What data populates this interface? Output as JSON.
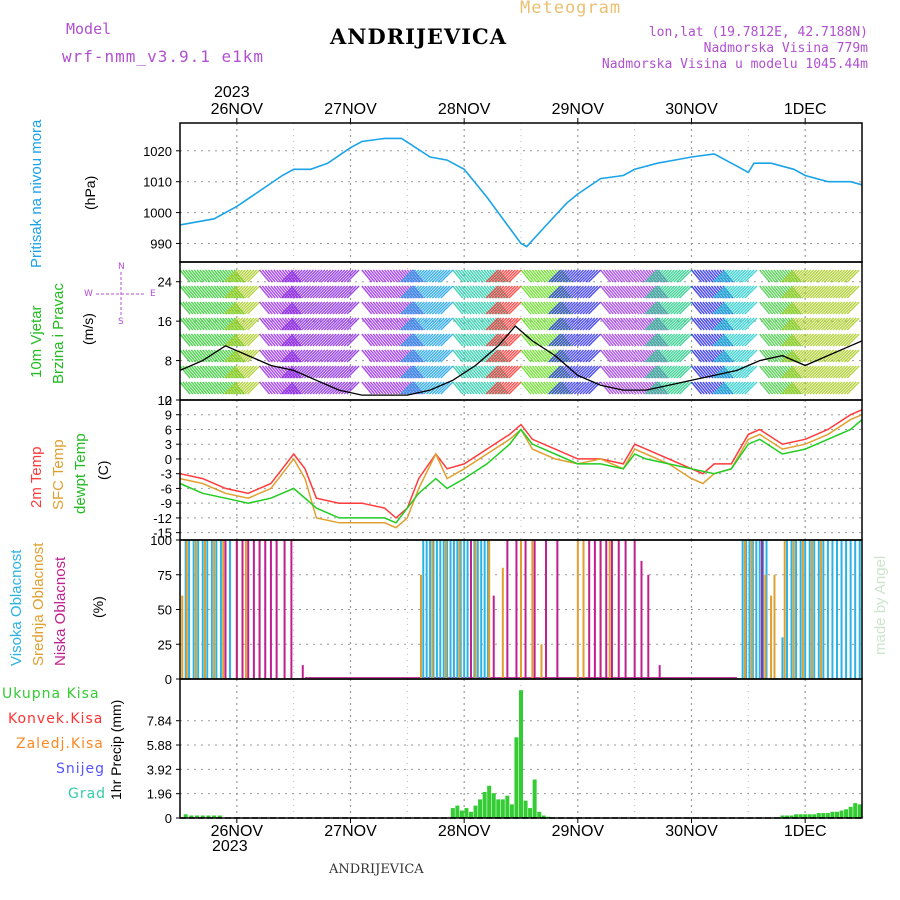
{
  "header": {
    "model_label": "Model",
    "model_value": "wrf-nmm_v3.9.1 e1km",
    "station": "ANDRIJEVICA",
    "meteogram": "Meteogram",
    "lonlat": "lon,lat (19.7812E, 42.7188N)",
    "elevation": "Nadmorska Visina 779m",
    "model_elevation": "Nadmorska Visina u modelu 1045.44m",
    "year_top": "2023",
    "year_bottom": "2023",
    "footer_station": "ANDRIJEVICA",
    "watermark": "made by Angel"
  },
  "colors": {
    "pressure": "#1aa3e8",
    "wind_speed": "#000000",
    "temp_2m": "#ff3b3b",
    "temp_sfc": "#e0a030",
    "dewpt": "#22cc22",
    "cloud_high": "#2bb3e6",
    "cloud_mid": "#e0a030",
    "cloud_low": "#c0208f",
    "precip_total": "#33cc33",
    "precip_conv": "#ff3333",
    "precip_frz": "#ff8822",
    "precip_snow": "#5555ff",
    "precip_grad": "#33ccaa",
    "axis_label_purple": "#b050d0",
    "meteogram_gold": "#e8c070"
  },
  "panel_labels": {
    "pressure": [
      "Pritisak na nivou mora"
    ],
    "pressure_unit": "(hPa)",
    "wind": [
      "10m Vjetar",
      "Brzina i Pravac"
    ],
    "wind_unit": "(m/s)",
    "wind_compass": {
      "n": "N",
      "s": "S",
      "e": "E",
      "w": "W"
    },
    "temp": [
      "2m Temp",
      "SFC Temp",
      "dewpt Temp"
    ],
    "temp_unit": "(C)",
    "cloud": [
      "Visoka Oblacnost",
      "Srednja Oblacnost",
      "Niska Oblacnost"
    ],
    "cloud_unit": "(%)",
    "precip_legend": [
      "Ukupna Kisa",
      "Konvek.Kisa",
      "Zaledj.Kisa",
      "Snijeg",
      "Grad"
    ],
    "precip_unit": "1hr Precip (mm)"
  },
  "chart_data": [
    {
      "type": "line",
      "panel": "pressure",
      "x_ticks": [
        "26NOV",
        "27NOV",
        "28NOV",
        "29NOV",
        "30NOV",
        "1DEC"
      ],
      "x_range_days": [
        -0.5,
        5.5
      ],
      "ylim": [
        984,
        1029
      ],
      "y_ticks": [
        990,
        1000,
        1010,
        1020
      ],
      "series": [
        {
          "x": [
            -0.5,
            -0.2,
            0,
            0.2,
            0.4,
            0.5,
            0.65,
            0.8,
            1,
            1.1,
            1.3,
            1.45,
            1.7,
            1.85,
            2,
            2.2,
            2.4,
            2.5,
            2.55,
            2.7,
            2.9,
            3,
            3.2,
            3.4,
            3.5,
            3.7,
            3.85,
            4,
            4.2,
            4.4,
            4.5,
            4.55,
            4.7,
            4.9,
            5,
            5.2,
            5.4,
            5.5
          ],
          "values": [
            996,
            998,
            1002,
            1007,
            1012,
            1014,
            1014,
            1016,
            1021,
            1023,
            1024,
            1024,
            1018,
            1017,
            1014,
            1005,
            995,
            990,
            989,
            995,
            1003,
            1006,
            1011,
            1012,
            1014,
            1016,
            1017,
            1018,
            1019,
            1015,
            1013,
            1016,
            1016,
            1014,
            1012,
            1010,
            1010,
            1009
          ]
        }
      ]
    },
    {
      "type": "line",
      "panel": "wind",
      "ylim": [
        0,
        28
      ],
      "y_ticks": [
        0,
        8,
        16,
        24
      ],
      "series": [
        {
          "x": [
            -0.5,
            -0.3,
            -0.1,
            0.1,
            0.3,
            0.5,
            0.7,
            0.9,
            1.1,
            1.3,
            1.5,
            1.7,
            1.9,
            2.1,
            2.3,
            2.45,
            2.6,
            2.8,
            3,
            3.2,
            3.4,
            3.6,
            3.8,
            4,
            4.2,
            4.4,
            4.6,
            4.8,
            5,
            5.2,
            5.4,
            5.5
          ],
          "values": [
            6,
            8,
            11,
            9,
            7,
            6,
            4,
            2,
            1,
            1,
            1,
            2,
            4,
            7,
            11,
            15,
            12,
            9,
            5,
            3,
            2,
            2,
            3,
            4,
            5,
            6,
            8,
            9,
            7,
            9,
            11,
            12
          ]
        }
      ]
    },
    {
      "type": "line",
      "panel": "temp",
      "ylim": [
        -16.5,
        12
      ],
      "y_ticks": [
        -15,
        -12,
        -9,
        -6,
        -3,
        0,
        3,
        6,
        9,
        12
      ],
      "series": [
        {
          "name": "2m Temp",
          "x": [
            -0.5,
            -0.3,
            -0.1,
            0.1,
            0.3,
            0.4,
            0.5,
            0.6,
            0.7,
            0.9,
            1.1,
            1.3,
            1.4,
            1.5,
            1.6,
            1.75,
            1.85,
            2,
            2.2,
            2.4,
            2.5,
            2.6,
            2.8,
            3,
            3.2,
            3.4,
            3.5,
            3.6,
            3.8,
            4,
            4.1,
            4.2,
            4.35,
            4.5,
            4.6,
            4.8,
            5,
            5.2,
            5.4,
            5.5
          ],
          "values": [
            -3,
            -4,
            -6,
            -7,
            -5,
            -2,
            1,
            -2,
            -8,
            -9,
            -9,
            -10,
            -12,
            -10,
            -4,
            1,
            -2,
            -1,
            2,
            5,
            7,
            4,
            2,
            0,
            0,
            -1,
            3,
            2,
            0,
            -2,
            -3,
            -1,
            -1,
            5,
            6,
            3,
            4,
            6,
            9,
            10
          ]
        },
        {
          "name": "SFC Temp",
          "x": [
            -0.5,
            -0.3,
            -0.1,
            0.1,
            0.3,
            0.4,
            0.5,
            0.6,
            0.7,
            0.9,
            1.1,
            1.3,
            1.4,
            1.5,
            1.6,
            1.75,
            1.85,
            2,
            2.2,
            2.4,
            2.5,
            2.6,
            2.8,
            3,
            3.2,
            3.4,
            3.5,
            3.6,
            3.8,
            4,
            4.1,
            4.2,
            4.35,
            4.5,
            4.6,
            4.8,
            5,
            5.2,
            5.4,
            5.5
          ],
          "values": [
            -4,
            -5,
            -7,
            -8,
            -6,
            -3,
            0,
            -4,
            -12,
            -13,
            -13,
            -13,
            -14,
            -12,
            -6,
            1,
            -4,
            -2,
            1,
            4,
            6,
            2,
            0,
            -1,
            0,
            -2,
            2,
            1,
            -1,
            -4,
            -5,
            -3,
            -2,
            4,
            5,
            2,
            3,
            5,
            8,
            9
          ]
        },
        {
          "name": "dewpt Temp",
          "x": [
            -0.5,
            -0.3,
            -0.1,
            0.1,
            0.3,
            0.5,
            0.7,
            0.9,
            1.1,
            1.3,
            1.4,
            1.5,
            1.6,
            1.75,
            1.85,
            2,
            2.2,
            2.4,
            2.5,
            2.6,
            2.8,
            3,
            3.2,
            3.4,
            3.5,
            3.6,
            3.8,
            4,
            4.2,
            4.35,
            4.5,
            4.6,
            4.8,
            5,
            5.2,
            5.4,
            5.5
          ],
          "values": [
            -5,
            -7,
            -8,
            -9,
            -8,
            -6,
            -10,
            -12,
            -12,
            -12,
            -13,
            -10,
            -7,
            -4,
            -6,
            -4,
            -1,
            3,
            6,
            3,
            1,
            -1,
            -1,
            -2,
            1,
            0,
            -1,
            -2,
            -3,
            -2,
            3,
            4,
            1,
            2,
            4,
            6,
            8
          ]
        }
      ]
    },
    {
      "type": "bar",
      "panel": "cloud",
      "ylim": [
        0,
        100
      ],
      "y_ticks": [
        0,
        25,
        50,
        75,
        100
      ],
      "series": [
        {
          "name": "Visoka Oblacnost",
          "x": [
            -0.45,
            -0.42,
            -0.38,
            -0.34,
            -0.3,
            -0.26,
            -0.22,
            -0.18,
            -0.14,
            -0.1,
            -0.06,
            1.64,
            1.67,
            1.7,
            1.73,
            1.76,
            1.79,
            1.82,
            1.85,
            1.88,
            1.91,
            1.94,
            1.97,
            2.0,
            2.03,
            2.06,
            2.09,
            2.12,
            2.15,
            2.18,
            2.21,
            4.45,
            4.48,
            4.51,
            4.54,
            4.57,
            4.6,
            4.63,
            4.66,
            4.8,
            4.84,
            4.88,
            4.92,
            4.96,
            5.0,
            5.04,
            5.08,
            5.12,
            5.16,
            5.2,
            5.24,
            5.28,
            5.32,
            5.36,
            5.4,
            5.44,
            5.48
          ],
          "values": [
            100,
            100,
            100,
            100,
            100,
            100,
            100,
            100,
            100,
            100,
            100,
            100,
            100,
            100,
            100,
            100,
            100,
            100,
            100,
            100,
            100,
            100,
            100,
            100,
            100,
            100,
            100,
            100,
            100,
            100,
            100,
            100,
            100,
            100,
            100,
            100,
            100,
            100,
            100,
            30,
            100,
            100,
            100,
            100,
            100,
            100,
            100,
            100,
            100,
            100,
            100,
            100,
            100,
            100,
            100,
            100,
            100
          ]
        },
        {
          "name": "Srednja Oblacnost",
          "x": [
            -0.48,
            -0.44,
            -0.36,
            -0.28,
            -0.2,
            -0.12,
            0.0,
            0.08,
            0.2,
            1.62,
            1.72,
            1.84,
            1.96,
            2.1,
            2.22,
            2.34,
            2.5,
            2.6,
            2.68,
            3.0,
            3.05,
            3.2,
            3.28,
            4.47,
            4.53,
            4.65,
            4.7,
            4.73,
            4.82,
            4.9,
            4.98,
            5.06,
            5.14
          ],
          "values": [
            60,
            100,
            100,
            100,
            100,
            100,
            100,
            100,
            100,
            75,
            100,
            100,
            100,
            100,
            100,
            80,
            100,
            100,
            25,
            100,
            100,
            100,
            100,
            100,
            100,
            75,
            60,
            75,
            100,
            100,
            100,
            100,
            100
          ]
        },
        {
          "name": "Niska Oblacnost",
          "x": [
            -0.1,
            0.0,
            0.05,
            0.1,
            0.15,
            0.2,
            0.25,
            0.3,
            0.35,
            0.42,
            0.48,
            0.58,
            2.06,
            2.26,
            2.38,
            2.46,
            2.54,
            2.62,
            2.72,
            2.82,
            3.1,
            3.15,
            3.2,
            3.25,
            3.3,
            3.36,
            3.42,
            3.5,
            3.56,
            3.62,
            3.72,
            4.62
          ],
          "values": [
            100,
            100,
            100,
            100,
            100,
            100,
            100,
            100,
            100,
            100,
            100,
            10,
            100,
            60,
            100,
            100,
            100,
            100,
            100,
            100,
            100,
            100,
            100,
            100,
            100,
            100,
            100,
            100,
            85,
            75,
            10,
            100
          ]
        }
      ]
    },
    {
      "type": "bar",
      "panel": "precip",
      "ylim": [
        0,
        11.2
      ],
      "y_ticks": [
        0,
        1.96,
        3.92,
        5.88,
        7.84
      ],
      "series": [
        {
          "name": "Ukupna Kisa",
          "x": [
            -0.45,
            -0.4,
            -0.35,
            -0.3,
            -0.25,
            -0.2,
            -0.15,
            1.9,
            1.94,
            1.98,
            2.02,
            2.06,
            2.1,
            2.14,
            2.18,
            2.22,
            2.26,
            2.3,
            2.34,
            2.38,
            2.42,
            2.46,
            2.5,
            2.54,
            2.58,
            2.62,
            2.66,
            2.7,
            2.74,
            4.8,
            4.84,
            4.88,
            4.92,
            4.96,
            5.0,
            5.04,
            5.08,
            5.12,
            5.16,
            5.2,
            5.24,
            5.28,
            5.32,
            5.36,
            5.4,
            5.44,
            5.48
          ],
          "values": [
            0.3,
            0.2,
            0.2,
            0.2,
            0.2,
            0.2,
            0.2,
            0.8,
            1.0,
            0.6,
            0.8,
            0.5,
            1.0,
            1.5,
            2.1,
            2.6,
            2.0,
            1.5,
            1.5,
            1.8,
            1.1,
            6.5,
            10.3,
            1.4,
            0.8,
            3.1,
            0.5,
            0.2,
            0.1,
            0.2,
            0.2,
            0.2,
            0.3,
            0.3,
            0.3,
            0.3,
            0.3,
            0.4,
            0.4,
            0.4,
            0.5,
            0.5,
            0.6,
            0.7,
            0.9,
            1.2,
            1.1
          ]
        }
      ]
    }
  ]
}
